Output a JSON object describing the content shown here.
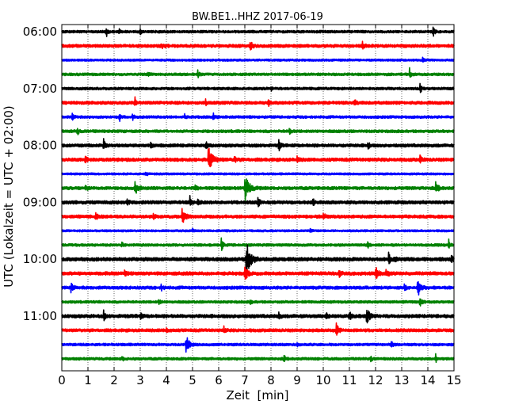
{
  "chart_data": {
    "type": "line",
    "title": "BW.BE1..HHZ 2017-06-19",
    "xlabel": "Zeit  [min]",
    "ylabel": "UTC (Lokalzeit = UTC + 02:00)",
    "xlim": [
      0,
      15
    ],
    "xticks": [
      0,
      1,
      2,
      3,
      4,
      5,
      6,
      7,
      8,
      9,
      10,
      11,
      12,
      13,
      14,
      15
    ],
    "ytick_labels": [
      "06:00",
      "07:00",
      "08:00",
      "09:00",
      "10:00",
      "11:00"
    ],
    "grid": true,
    "color_cycle": [
      "#000000",
      "#ff0000",
      "#0000ff",
      "#008000"
    ],
    "traces": [
      {
        "start": "06:00",
        "noise": 0.1,
        "events": [
          [
            1.7,
            0.45,
            0.03
          ],
          [
            3.0,
            0.3,
            0.02
          ],
          [
            14.2,
            0.45,
            0.04
          ],
          [
            2.2,
            0.2,
            0.03
          ]
        ]
      },
      {
        "start": "06:15",
        "noise": 0.12,
        "events": [
          [
            7.2,
            0.5,
            0.05
          ],
          [
            11.5,
            0.25,
            0.05
          ],
          [
            3.8,
            0.15,
            0.1
          ]
        ]
      },
      {
        "start": "06:30",
        "noise": 0.08,
        "events": [
          [
            13.8,
            0.15,
            0.05
          ]
        ]
      },
      {
        "start": "06:45",
        "noise": 0.1,
        "events": [
          [
            5.2,
            0.35,
            0.03
          ],
          [
            13.3,
            0.55,
            0.03
          ],
          [
            3.3,
            0.15,
            0.05
          ]
        ]
      },
      {
        "start": "07:00",
        "noise": 0.1,
        "events": [
          [
            13.7,
            0.5,
            0.03
          ],
          [
            8.0,
            0.15,
            0.03
          ]
        ]
      },
      {
        "start": "07:15",
        "noise": 0.12,
        "events": [
          [
            2.8,
            0.45,
            0.03
          ],
          [
            7.9,
            0.35,
            0.03
          ],
          [
            11.2,
            0.4,
            0.03
          ],
          [
            5.5,
            0.2,
            0.03
          ]
        ]
      },
      {
        "start": "07:30",
        "noise": 0.1,
        "events": [
          [
            0.4,
            0.4,
            0.03
          ],
          [
            2.2,
            0.35,
            0.04
          ],
          [
            2.7,
            0.3,
            0.03
          ],
          [
            5.8,
            0.35,
            0.04
          ],
          [
            4.7,
            0.2,
            0.03
          ]
        ]
      },
      {
        "start": "07:45",
        "noise": 0.11,
        "events": [
          [
            0.6,
            0.25,
            0.04
          ],
          [
            8.7,
            0.35,
            0.03
          ]
        ]
      },
      {
        "start": "08:00",
        "noise": 0.12,
        "events": [
          [
            1.6,
            0.45,
            0.04
          ],
          [
            8.3,
            0.5,
            0.04
          ],
          [
            11.7,
            0.35,
            0.04
          ],
          [
            5.5,
            0.3,
            0.05
          ],
          [
            3.4,
            0.2,
            0.04
          ]
        ]
      },
      {
        "start": "08:15",
        "noise": 0.13,
        "events": [
          [
            5.6,
            1.0,
            0.12
          ],
          [
            0.9,
            0.25,
            0.04
          ],
          [
            13.7,
            0.3,
            0.04
          ],
          [
            9.0,
            0.2,
            0.05
          ],
          [
            6.6,
            0.25,
            0.05
          ]
        ]
      },
      {
        "start": "08:30",
        "noise": 0.08,
        "events": [
          [
            3.2,
            0.1,
            0.1
          ]
        ]
      },
      {
        "start": "08:45",
        "noise": 0.12,
        "events": [
          [
            7.0,
            1.1,
            0.12
          ],
          [
            2.8,
            0.45,
            0.1
          ],
          [
            14.3,
            0.5,
            0.06
          ],
          [
            0.9,
            0.25,
            0.04
          ],
          [
            5.1,
            0.2,
            0.05
          ]
        ]
      },
      {
        "start": "09:00",
        "noise": 0.13,
        "events": [
          [
            4.9,
            0.45,
            0.04
          ],
          [
            5.2,
            0.35,
            0.03
          ],
          [
            7.5,
            0.45,
            0.04
          ],
          [
            9.6,
            0.3,
            0.04
          ],
          [
            2.5,
            0.25,
            0.04
          ]
        ]
      },
      {
        "start": "09:15",
        "noise": 0.12,
        "events": [
          [
            4.6,
            0.6,
            0.08
          ],
          [
            1.3,
            0.35,
            0.05
          ],
          [
            10.0,
            0.35,
            0.04
          ],
          [
            3.5,
            0.2,
            0.05
          ]
        ]
      },
      {
        "start": "09:30",
        "noise": 0.08,
        "events": [
          [
            5.0,
            0.15,
            0.04
          ],
          [
            9.5,
            0.15,
            0.04
          ]
        ]
      },
      {
        "start": "09:45",
        "noise": 0.1,
        "events": [
          [
            6.1,
            0.5,
            0.05
          ],
          [
            11.7,
            0.45,
            0.03
          ],
          [
            14.8,
            0.4,
            0.03
          ],
          [
            2.3,
            0.15,
            0.05
          ]
        ]
      },
      {
        "start": "10:00",
        "noise": 0.14,
        "events": [
          [
            7.05,
            1.6,
            0.12
          ],
          [
            12.5,
            0.45,
            0.04
          ],
          [
            12.75,
            0.3,
            0.04
          ],
          [
            14.9,
            0.4,
            0.03
          ]
        ]
      },
      {
        "start": "10:15",
        "noise": 0.13,
        "events": [
          [
            7.0,
            0.9,
            0.06
          ],
          [
            10.6,
            0.4,
            0.05
          ],
          [
            12.0,
            0.6,
            0.06
          ],
          [
            12.4,
            0.3,
            0.1
          ],
          [
            2.4,
            0.2,
            0.04
          ]
        ]
      },
      {
        "start": "10:30",
        "noise": 0.12,
        "events": [
          [
            13.6,
            0.85,
            0.08
          ],
          [
            0.35,
            0.5,
            0.04
          ],
          [
            13.1,
            0.4,
            0.04
          ],
          [
            3.8,
            0.2,
            0.05
          ]
        ]
      },
      {
        "start": "10:45",
        "noise": 0.1,
        "events": [
          [
            13.7,
            0.45,
            0.04
          ],
          [
            3.7,
            0.2,
            0.05
          ],
          [
            7.2,
            0.15,
            0.05
          ]
        ]
      },
      {
        "start": "11:00",
        "noise": 0.13,
        "events": [
          [
            11.65,
            0.8,
            0.07
          ],
          [
            1.6,
            0.4,
            0.03
          ],
          [
            11.0,
            0.4,
            0.04
          ],
          [
            8.3,
            0.35,
            0.03
          ],
          [
            10.1,
            0.3,
            0.03
          ],
          [
            3.0,
            0.25,
            0.04
          ]
        ]
      },
      {
        "start": "11:15",
        "noise": 0.12,
        "events": [
          [
            10.5,
            0.55,
            0.06
          ],
          [
            6.2,
            0.25,
            0.04
          ],
          [
            4.0,
            0.2,
            0.05
          ]
        ]
      },
      {
        "start": "11:30",
        "noise": 0.1,
        "events": [
          [
            4.75,
            0.8,
            0.08
          ],
          [
            12.6,
            0.35,
            0.03
          ],
          [
            9.0,
            0.15,
            0.05
          ]
        ]
      },
      {
        "start": "11:45",
        "noise": 0.1,
        "events": [
          [
            8.5,
            0.4,
            0.03
          ],
          [
            14.3,
            0.4,
            0.03
          ],
          [
            11.8,
            0.25,
            0.04
          ],
          [
            2.3,
            0.15,
            0.05
          ]
        ]
      }
    ]
  }
}
